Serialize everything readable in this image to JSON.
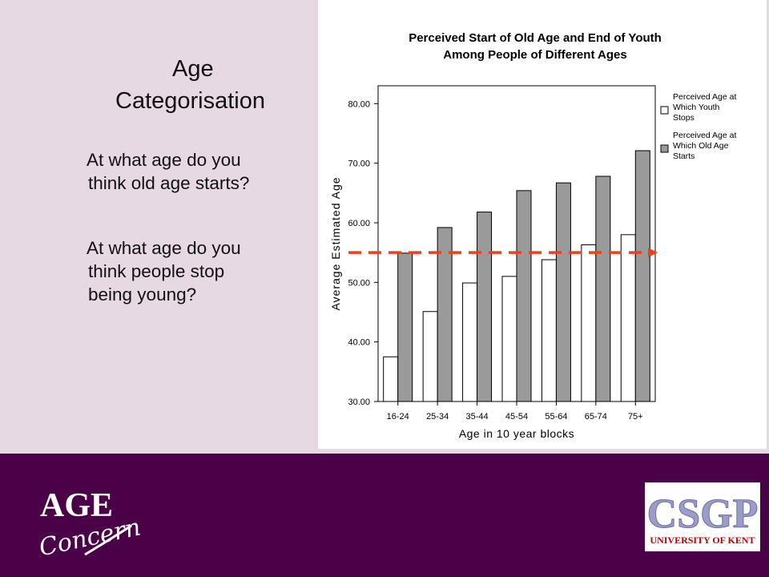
{
  "slide": {
    "title_line1": "Age",
    "title_line2": "Categorisation",
    "q1_line1": "At what age do you",
    "q1_line2": "think old age starts?",
    "q2_line1": "At what age do you",
    "q2_line2": "think people stop",
    "q2_line3": "being young?"
  },
  "chart_data": {
    "type": "bar",
    "title_line1": "Perceived Start of Old Age and End of Youth",
    "title_line2": "Among People of Different Ages",
    "xlabel": "Age in 10 year blocks",
    "ylabel": "Average Estimated Age",
    "ylim": [
      30,
      83
    ],
    "yticks": [
      "30.00",
      "40.00",
      "50.00",
      "60.00",
      "70.00",
      "80.00"
    ],
    "ytick_values": [
      30,
      40,
      50,
      60,
      70,
      80
    ],
    "categories": [
      "16-24",
      "25-34",
      "35-44",
      "45-54",
      "55-64",
      "65-74",
      "75+"
    ],
    "series": [
      {
        "legend_lines": [
          "Perceived Age at",
          "Which Youth",
          "Stops"
        ],
        "values": [
          37.5,
          45.1,
          49.9,
          51.0,
          53.8,
          56.3,
          58.0
        ],
        "color": "#ffffff"
      },
      {
        "legend_lines": [
          "Perceived Age at",
          "Which Old Age",
          "Starts"
        ],
        "values": [
          54.9,
          59.2,
          61.8,
          65.4,
          66.7,
          67.8,
          72.1
        ],
        "color": "#9a9a9a"
      }
    ],
    "reference_line": {
      "value": 55,
      "color": "#e8431a",
      "style": "dashed-arrow"
    },
    "legend": "right",
    "grid": false
  },
  "logos": {
    "age_concern": {
      "line1": "AGE",
      "line2": "Concern"
    },
    "csgp": {
      "line1": "CSGP",
      "line2": "UNIVERSITY OF KENT"
    }
  }
}
